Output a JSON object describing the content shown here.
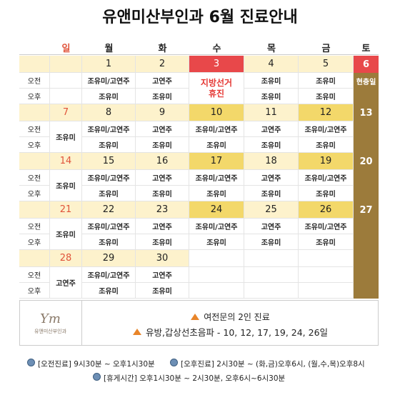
{
  "title": "유앤미산부인과 6월 진료안내",
  "header": {
    "days": [
      "일",
      "월",
      "화",
      "수",
      "목",
      "금",
      "토"
    ]
  },
  "weeks": [
    {
      "am_label": "오전",
      "pm_label": "오후",
      "days": [
        null,
        {
          "date": 1,
          "am": "조유미/고연주",
          "pm": "조유미"
        },
        {
          "date": 2,
          "am": "고연주",
          "pm": "조유미"
        },
        {
          "date": 3,
          "closed": [
            "지방선거",
            "휴진"
          ]
        },
        {
          "date": 4,
          "am": "조유미",
          "pm": "조유미"
        },
        {
          "date": 5,
          "am": "조유미",
          "pm": "조유미"
        },
        {
          "date": 6,
          "holiday": "현충일"
        }
      ]
    },
    {
      "am_label": "오전",
      "pm_label": "오후",
      "days": [
        {
          "date": 7,
          "doctor": "조유미"
        },
        {
          "date": 8,
          "am": "조유미/고연주",
          "pm": "조유미"
        },
        {
          "date": 9,
          "am": "고연주",
          "pm": "조유미"
        },
        {
          "date": 10,
          "am": "조유미/고연주",
          "pm": "조유미",
          "highlight": true
        },
        {
          "date": 11,
          "am": "고연주",
          "pm": "조유미"
        },
        {
          "date": 12,
          "am": "조유미/고연주",
          "pm": "조유미",
          "highlight": true
        },
        {
          "date": 13
        }
      ]
    },
    {
      "am_label": "오전",
      "pm_label": "오후",
      "days": [
        {
          "date": 14,
          "doctor": "조유미"
        },
        {
          "date": 15,
          "am": "조유미/고연주",
          "pm": "조유미"
        },
        {
          "date": 16,
          "am": "고연주",
          "pm": "조유미"
        },
        {
          "date": 17,
          "am": "조유미/고연주",
          "pm": "조유미",
          "highlight": true
        },
        {
          "date": 18,
          "am": "고연주",
          "pm": "조유미"
        },
        {
          "date": 19,
          "am": "조유미/고연주",
          "pm": "조유미",
          "highlight": true
        },
        {
          "date": 20
        }
      ]
    },
    {
      "am_label": "오전",
      "pm_label": "오후",
      "days": [
        {
          "date": 21,
          "doctor": "조유미"
        },
        {
          "date": 22,
          "am": "조유미/고연주",
          "pm": "조유미"
        },
        {
          "date": 23,
          "am": "고연주",
          "pm": "조유미"
        },
        {
          "date": 24,
          "am": "조유미/고연주",
          "pm": "조유미",
          "highlight": true
        },
        {
          "date": 25,
          "am": "고연주",
          "pm": "조유미"
        },
        {
          "date": 26,
          "am": "조유미/고연주",
          "pm": "조유미",
          "highlight": true
        },
        {
          "date": 27
        }
      ]
    },
    {
      "am_label": "오전",
      "pm_label": "오후",
      "days": [
        {
          "date": 28,
          "doctor": "고연주"
        },
        {
          "date": 29,
          "am": "조유미/고연주",
          "pm": "조유미"
        },
        {
          "date": 30,
          "am": "고연주",
          "pm": "조유미"
        },
        null,
        null,
        null,
        null
      ]
    }
  ],
  "logo": {
    "mark": "Ym",
    "name": "유앤미산부인과"
  },
  "notes": [
    "여전문의 2인 진료",
    "유방,갑상선초음파 - 10, 12, 17, 19, 24, 26일"
  ],
  "hours": [
    {
      "label": "[오전진료]",
      "text": "9시30분 ~ 오후1시30분"
    },
    {
      "label": "[오후진료]",
      "text": "2시30분 ~ (화,금)오후6시, (월,수,목)오후8시"
    },
    {
      "label": "[휴게시간]",
      "text": "오후1시30분 ~ 2시30분, 오후6시~6시30분"
    }
  ]
}
